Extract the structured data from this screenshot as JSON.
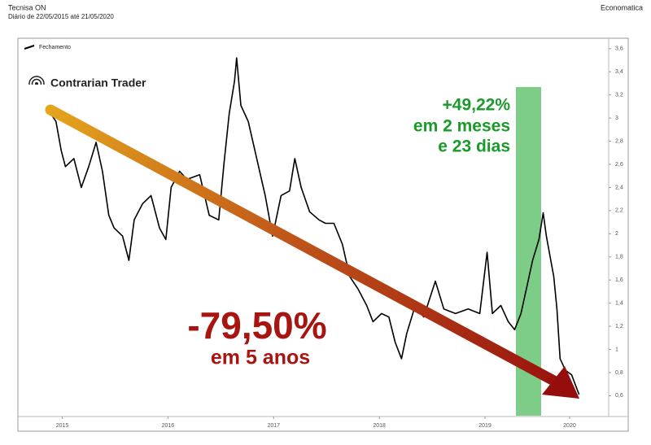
{
  "header": {
    "title": "Tecnisa ON",
    "subtitle": "Diário de 22/05/2015 até 21/05/2020",
    "source": "Economatica"
  },
  "chart_data": {
    "type": "line",
    "legend_label": "Fechamento",
    "brand": "Contrarian Trader",
    "annotations": {
      "gain": "+49,22%",
      "gain_period_1": "em 2 meses",
      "gain_period_2": "e 23 dias",
      "loss": "-79,50%",
      "loss_period": "em 5 anos"
    },
    "series": [
      {
        "name": "Fechamento",
        "color": "#000000",
        "x": [
          2015.39,
          2015.44,
          2015.49,
          2015.53,
          2015.61,
          2015.68,
          2015.75,
          2015.82,
          2015.88,
          2015.94,
          2015.99,
          2016.07,
          2016.13,
          2016.18,
          2016.26,
          2016.34,
          2016.42,
          2016.48,
          2016.53,
          2016.61,
          2016.68,
          2016.8,
          2016.89,
          2016.98,
          2017.03,
          2017.08,
          2017.13,
          2017.15,
          2017.19,
          2017.26,
          2017.34,
          2017.42,
          2017.49,
          2017.57,
          2017.65,
          2017.7,
          2017.76,
          2017.84,
          2017.93,
          2017.99,
          2018.07,
          2018.15,
          2018.22,
          2018.3,
          2018.38,
          2018.44,
          2018.52,
          2018.59,
          2018.65,
          2018.71,
          2018.76,
          2018.84,
          2018.92,
          2019.03,
          2019.11,
          2019.22,
          2019.34,
          2019.45,
          2019.52,
          2019.57,
          2019.65,
          2019.72,
          2019.78,
          2019.84,
          2019.9,
          2019.95,
          2020.01,
          2020.05,
          2020.08,
          2020.15,
          2020.18,
          2020.21,
          2020.26,
          2020.32,
          2020.39
        ],
        "values": [
          3.04,
          2.97,
          2.72,
          2.58,
          2.65,
          2.4,
          2.58,
          2.79,
          2.54,
          2.16,
          2.05,
          1.98,
          1.77,
          2.12,
          2.26,
          2.33,
          2.05,
          1.95,
          2.4,
          2.54,
          2.47,
          2.51,
          2.16,
          2.12,
          2.61,
          3.04,
          3.32,
          3.52,
          3.11,
          2.97,
          2.65,
          2.33,
          1.98,
          2.33,
          2.37,
          2.65,
          2.4,
          2.19,
          2.12,
          2.09,
          2.09,
          1.91,
          1.63,
          1.52,
          1.38,
          1.24,
          1.31,
          1.28,
          1.06,
          0.92,
          1.14,
          1.38,
          1.28,
          1.59,
          1.35,
          1.31,
          1.35,
          1.31,
          1.84,
          1.31,
          1.38,
          1.24,
          1.17,
          1.31,
          1.56,
          1.77,
          1.95,
          2.18,
          1.98,
          1.63,
          1.35,
          0.92,
          0.82,
          0.78,
          0.61
        ]
      }
    ],
    "xlim": [
      2015.08,
      2020.67
    ],
    "xticks": [
      {
        "value": 2015.5,
        "label": "2015"
      },
      {
        "value": 2016.5,
        "label": "2016"
      },
      {
        "value": 2017.5,
        "label": "2017"
      },
      {
        "value": 2018.5,
        "label": "2018"
      },
      {
        "value": 2019.5,
        "label": "2019"
      },
      {
        "value": 2020.3,
        "label": "2020"
      }
    ],
    "ylim": [
      0.42,
      3.69
    ],
    "yticks": [
      {
        "value": 0.6,
        "label": "0,6"
      },
      {
        "value": 0.8,
        "label": "0,8"
      },
      {
        "value": 1,
        "label": "1"
      },
      {
        "value": 1.2,
        "label": "1,2"
      },
      {
        "value": 1.4,
        "label": "1,4"
      },
      {
        "value": 1.6,
        "label": "1,6"
      },
      {
        "value": 1.8,
        "label": "1,8"
      },
      {
        "value": 2,
        "label": "2"
      },
      {
        "value": 2.2,
        "label": "2,2"
      },
      {
        "value": 2.4,
        "label": "2,4"
      },
      {
        "value": 2.6,
        "label": "2,6"
      },
      {
        "value": 2.8,
        "label": "2,8"
      },
      {
        "value": 3,
        "label": "3"
      },
      {
        "value": 3.2,
        "label": "3,2"
      },
      {
        "value": 3.4,
        "label": "3,4"
      },
      {
        "value": 3.6,
        "label": "3,6"
      }
    ]
  }
}
